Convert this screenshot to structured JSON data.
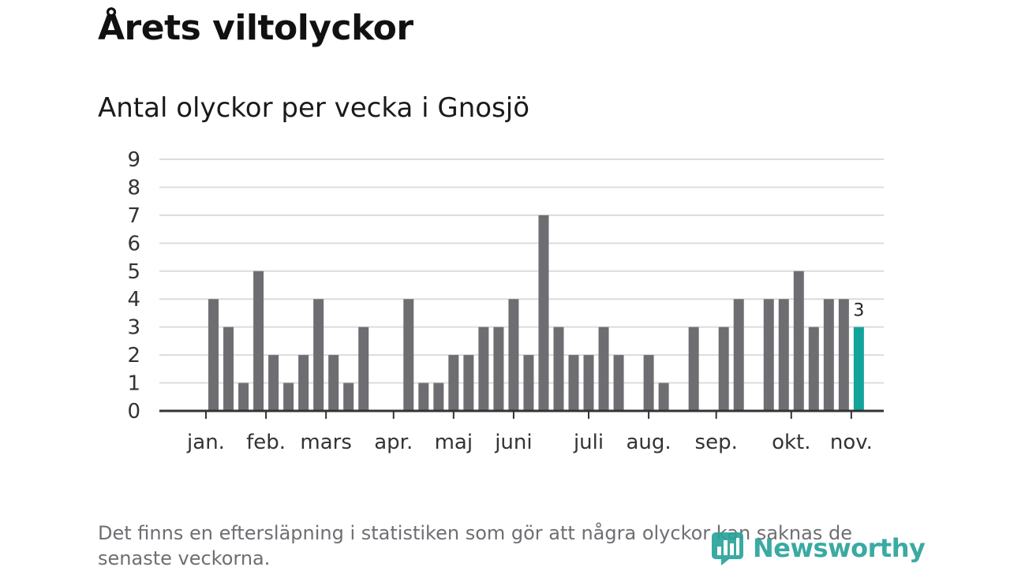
{
  "header": {
    "title": "Årets viltolyckor",
    "subtitle": "Antal olyckor per vecka i Gnosjö"
  },
  "footnote": "Det finns en eftersläpning i statistiken som gör att några olyckor kan saknas de senaste veckorna.",
  "logo": {
    "text": "Newsworthy",
    "color": "#2aa39b",
    "icon": "newsworthy-logo-icon"
  },
  "colors": {
    "bar": "#6e6d72",
    "highlight": "#13a39a",
    "grid": "#dcdcdc",
    "axis": "#333333"
  },
  "chart_data": {
    "type": "bar",
    "title": "Antal olyckor per vecka i Gnosjö",
    "xlabel": "",
    "ylabel": "",
    "ylim": [
      0,
      9
    ],
    "yticks": [
      0,
      1,
      2,
      3,
      4,
      5,
      6,
      7,
      8,
      9
    ],
    "grid": true,
    "x": [
      1,
      2,
      3,
      4,
      5,
      6,
      7,
      8,
      9,
      10,
      11,
      12,
      13,
      14,
      15,
      16,
      17,
      18,
      19,
      20,
      21,
      22,
      23,
      24,
      25,
      26,
      27,
      28,
      29,
      30,
      31,
      32,
      33,
      34,
      35,
      36,
      37,
      38,
      39,
      40,
      41,
      42,
      43,
      44,
      45,
      46,
      47
    ],
    "values": [
      0,
      4,
      3,
      1,
      5,
      2,
      1,
      2,
      4,
      2,
      1,
      3,
      0,
      0,
      4,
      1,
      1,
      2,
      2,
      3,
      3,
      4,
      2,
      7,
      3,
      2,
      2,
      3,
      2,
      0,
      2,
      1,
      0,
      3,
      0,
      3,
      4,
      0,
      4,
      4,
      5,
      3,
      4,
      4,
      3,
      null,
      null
    ],
    "x_ticks": [
      {
        "label": "jan.",
        "week": 1.5
      },
      {
        "label": "feb.",
        "week": 5.5
      },
      {
        "label": "mars",
        "week": 9.5
      },
      {
        "label": "apr.",
        "week": 14
      },
      {
        "label": "maj",
        "week": 18
      },
      {
        "label": "juni",
        "week": 22
      },
      {
        "label": "juli",
        "week": 27
      },
      {
        "label": "aug.",
        "week": 31
      },
      {
        "label": "sep.",
        "week": 35.5
      },
      {
        "label": "okt.",
        "week": 40.5
      },
      {
        "label": "nov.",
        "week": 44.5
      }
    ],
    "highlight": {
      "week": 45,
      "value": 3,
      "label": "3"
    }
  }
}
